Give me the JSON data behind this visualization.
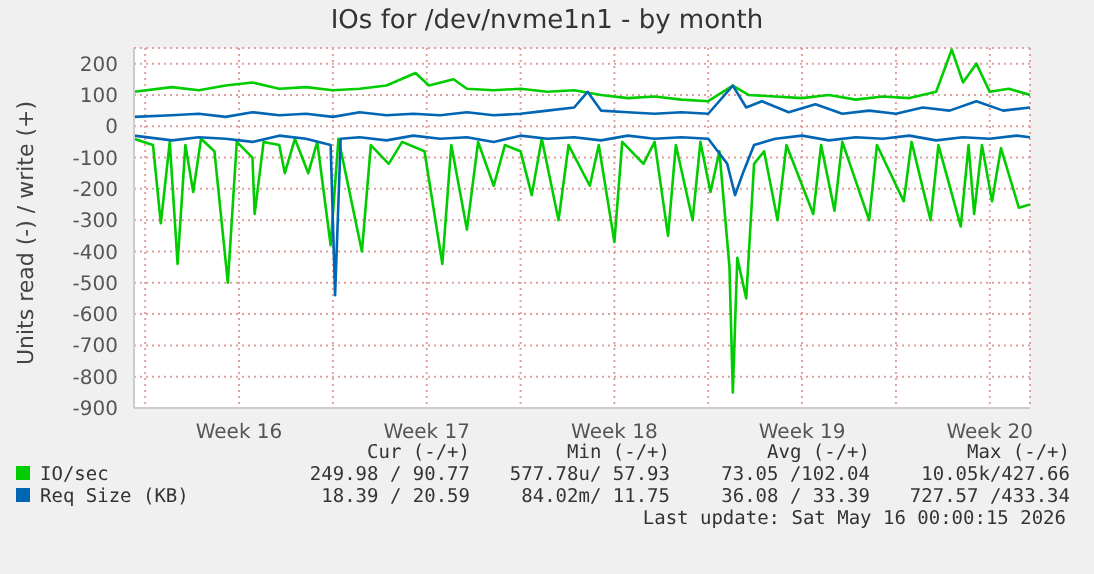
{
  "chart_data": {
    "type": "line",
    "title": "IOs for /dev/nvme1n1 - by month",
    "ylabel": "Units read (-) / write (+)",
    "xlim": [
      "2026-04-12T14:00",
      "2026-05-16T00:00"
    ],
    "xticks": [
      {
        "value": "2026-04-13T00:00",
        "label": null
      },
      {
        "value": "2026-04-16T12:00",
        "label": "Week 16"
      },
      {
        "value": "2026-04-20T00:00",
        "label": null
      },
      {
        "value": "2026-04-23T12:00",
        "label": "Week 17"
      },
      {
        "value": "2026-04-27T00:00",
        "label": null
      },
      {
        "value": "2026-04-30T12:00",
        "label": "Week 18"
      },
      {
        "value": "2026-05-04T00:00",
        "label": null
      },
      {
        "value": "2026-05-07T12:00",
        "label": "Week 19"
      },
      {
        "value": "2026-05-11T00:00",
        "label": null
      },
      {
        "value": "2026-05-14T12:00",
        "label": "Week 20"
      }
    ],
    "ylim": [
      -900,
      250
    ],
    "yticks": [
      -900,
      -800,
      -700,
      -600,
      -500,
      -400,
      -300,
      -200,
      -100,
      0,
      100,
      200
    ],
    "grid": true,
    "legend": "bottom",
    "marker": "none",
    "line_style": "solid",
    "series": [
      {
        "color": "#00cc00",
        "x": [
          "2026-04-12T14:00",
          "2026-04-13T07:00",
          "2026-04-13T14:00",
          "2026-04-13T22:00",
          "2026-04-14T05:00",
          "2026-04-14T12:00",
          "2026-04-14T19:00",
          "2026-04-15T02:00",
          "2026-04-15T14:00",
          "2026-04-16T02:00",
          "2026-04-16T10:00",
          "2026-04-17T00:00",
          "2026-04-17T02:00",
          "2026-04-17T10:00",
          "2026-04-18T00:00",
          "2026-04-18T05:00",
          "2026-04-18T14:00",
          "2026-04-19T02:00",
          "2026-04-19T10:00",
          "2026-04-19T22:00",
          "2026-04-20T05:00",
          "2026-04-21T02:00",
          "2026-04-21T10:00",
          "2026-04-22T02:00",
          "2026-04-22T14:00",
          "2026-04-23T10:00",
          "2026-04-24T02:00",
          "2026-04-24T10:00",
          "2026-04-25T00:00",
          "2026-04-25T10:00",
          "2026-04-26T00:00",
          "2026-04-26T10:00",
          "2026-04-27T00:00",
          "2026-04-27T10:00",
          "2026-04-27T19:00",
          "2026-04-28T10:00",
          "2026-04-28T19:00",
          "2026-04-29T14:00",
          "2026-04-29T22:00",
          "2026-04-30T12:00",
          "2026-04-30T19:00",
          "2026-05-01T14:00",
          "2026-05-02T00:00",
          "2026-05-02T12:00",
          "2026-05-02T19:00",
          "2026-05-03T10:00",
          "2026-05-03T17:00",
          "2026-05-04T02:00",
          "2026-05-04T10:00",
          "2026-05-04T19:00",
          "2026-05-04T22:00",
          "2026-05-05T02:00",
          "2026-05-05T10:00",
          "2026-05-05T17:00",
          "2026-05-06T02:00",
          "2026-05-06T14:00",
          "2026-05-06T22:00",
          "2026-05-07T22:00",
          "2026-05-08T05:00",
          "2026-05-08T17:00",
          "2026-05-09T00:00",
          "2026-05-10T00:00",
          "2026-05-10T07:00",
          "2026-05-11T07:00",
          "2026-05-11T14:00",
          "2026-05-12T07:00",
          "2026-05-12T14:00",
          "2026-05-13T10:00",
          "2026-05-13T17:00",
          "2026-05-13T22:00",
          "2026-05-14T05:00",
          "2026-05-14T14:00",
          "2026-05-14T22:00",
          "2026-05-15T14:00",
          "2026-05-16T00:00"
        ],
        "values": [
          -40,
          -60,
          -310,
          -50,
          -440,
          -60,
          -210,
          -40,
          -80,
          -500,
          -50,
          -100,
          -280,
          -50,
          -60,
          -150,
          -40,
          -150,
          -50,
          -380,
          -40,
          -400,
          -60,
          -120,
          -50,
          -80,
          -440,
          -60,
          -330,
          -50,
          -190,
          -60,
          -80,
          -220,
          -40,
          -300,
          -60,
          -190,
          -60,
          -370,
          -50,
          -120,
          -50,
          -350,
          -60,
          -300,
          -50,
          -210,
          -80,
          -450,
          -850,
          -420,
          -550,
          -120,
          -80,
          -300,
          -60,
          -280,
          -60,
          -270,
          -50,
          -300,
          -60,
          -240,
          -50,
          -300,
          -60,
          -320,
          -60,
          -280,
          -60,
          -240,
          -70,
          -260,
          -250
        ]
      },
      {
        "color": "#0066b3",
        "x": [
          "2026-04-12T14:00",
          "2026-04-14T00:00",
          "2026-04-15T00:00",
          "2026-04-16T00:00",
          "2026-04-17T00:00",
          "2026-04-18T00:00",
          "2026-04-19T00:00",
          "2026-04-19T22:00",
          "2026-04-20T02:00",
          "2026-04-20T07:00",
          "2026-04-21T00:00",
          "2026-04-22T00:00",
          "2026-04-23T00:00",
          "2026-04-24T00:00",
          "2026-04-25T00:00",
          "2026-04-26T00:00",
          "2026-04-27T00:00",
          "2026-04-28T00:00",
          "2026-04-29T00:00",
          "2026-04-30T00:00",
          "2026-05-01T00:00",
          "2026-05-02T00:00",
          "2026-05-03T00:00",
          "2026-05-04T00:00",
          "2026-05-04T17:00",
          "2026-05-05T00:00",
          "2026-05-05T07:00",
          "2026-05-05T17:00",
          "2026-05-06T12:00",
          "2026-05-07T12:00",
          "2026-05-08T12:00",
          "2026-05-09T12:00",
          "2026-05-10T12:00",
          "2026-05-11T12:00",
          "2026-05-12T12:00",
          "2026-05-13T12:00",
          "2026-05-14T12:00",
          "2026-05-15T12:00",
          "2026-05-16T00:00"
        ],
        "values": [
          -30,
          -45,
          -35,
          -40,
          -50,
          -30,
          -40,
          -60,
          -540,
          -40,
          -35,
          -45,
          -30,
          -40,
          -35,
          -50,
          -30,
          -40,
          -35,
          -45,
          -30,
          -40,
          -35,
          -40,
          -120,
          -220,
          -150,
          -60,
          -40,
          -30,
          -45,
          -35,
          -40,
          -30,
          -45,
          -35,
          -40,
          -30,
          -35
        ]
      },
      {
        "name": "IO/sec",
        "color": "#00cc00",
        "x": [
          "2026-04-12T14:00",
          "2026-04-14T00:00",
          "2026-04-15T00:00",
          "2026-04-16T00:00",
          "2026-04-17T00:00",
          "2026-04-18T00:00",
          "2026-04-19T00:00",
          "2026-04-20T00:00",
          "2026-04-21T00:00",
          "2026-04-22T00:00",
          "2026-04-23T02:00",
          "2026-04-23T14:00",
          "2026-04-24T12:00",
          "2026-04-25T00:00",
          "2026-04-26T00:00",
          "2026-04-27T00:00",
          "2026-04-28T00:00",
          "2026-04-29T00:00",
          "2026-04-30T00:00",
          "2026-05-01T00:00",
          "2026-05-02T00:00",
          "2026-05-03T00:00",
          "2026-05-04T00:00",
          "2026-05-04T22:00",
          "2026-05-05T12:00",
          "2026-05-06T12:00",
          "2026-05-07T12:00",
          "2026-05-08T12:00",
          "2026-05-09T12:00",
          "2026-05-10T12:00",
          "2026-05-11T12:00",
          "2026-05-12T12:00",
          "2026-05-13T02:00",
          "2026-05-13T12:00",
          "2026-05-14T00:00",
          "2026-05-14T12:00",
          "2026-05-15T05:00",
          "2026-05-16T00:00"
        ],
        "values": [
          110,
          125,
          115,
          130,
          140,
          120,
          125,
          115,
          120,
          130,
          170,
          130,
          150,
          120,
          115,
          120,
          110,
          115,
          100,
          90,
          95,
          85,
          80,
          130,
          100,
          95,
          90,
          100,
          85,
          95,
          90,
          110,
          245,
          140,
          200,
          110,
          120,
          100
        ]
      },
      {
        "name": "Req Size (KB)",
        "color": "#0066b3",
        "x": [
          "2026-04-12T14:00",
          "2026-04-14T00:00",
          "2026-04-15T00:00",
          "2026-04-16T00:00",
          "2026-04-17T00:00",
          "2026-04-18T00:00",
          "2026-04-19T00:00",
          "2026-04-20T00:00",
          "2026-04-21T00:00",
          "2026-04-22T00:00",
          "2026-04-23T00:00",
          "2026-04-24T00:00",
          "2026-04-25T00:00",
          "2026-04-26T00:00",
          "2026-04-27T00:00",
          "2026-04-28T00:00",
          "2026-04-29T00:00",
          "2026-04-29T12:00",
          "2026-04-30T00:00",
          "2026-05-01T00:00",
          "2026-05-02T00:00",
          "2026-05-03T00:00",
          "2026-05-04T00:00",
          "2026-05-04T22:00",
          "2026-05-05T10:00",
          "2026-05-06T00:00",
          "2026-05-07T00:00",
          "2026-05-08T00:00",
          "2026-05-09T00:00",
          "2026-05-10T00:00",
          "2026-05-11T00:00",
          "2026-05-12T00:00",
          "2026-05-13T00:00",
          "2026-05-14T00:00",
          "2026-05-15T00:00",
          "2026-05-16T00:00"
        ],
        "values": [
          30,
          35,
          40,
          30,
          45,
          35,
          40,
          30,
          45,
          35,
          40,
          35,
          45,
          35,
          40,
          50,
          60,
          110,
          50,
          45,
          40,
          45,
          40,
          130,
          60,
          80,
          45,
          70,
          40,
          50,
          40,
          60,
          50,
          80,
          50,
          60
        ]
      }
    ],
    "annotations": [
      "Cur (-/+)",
      "Min (-/+)",
      "Avg (-/+)",
      "Max (-/+)",
      "249.98 / 90.77",
      "577.78u/ 57.93",
      "73.05 /102.04",
      "10.05k/427.66",
      "18.39 / 20.59",
      "84.02m/ 11.75",
      "36.08 / 33.39",
      "727.57 /433.34",
      "Last update: Sat May 16 00:00:15 2026"
    ]
  }
}
